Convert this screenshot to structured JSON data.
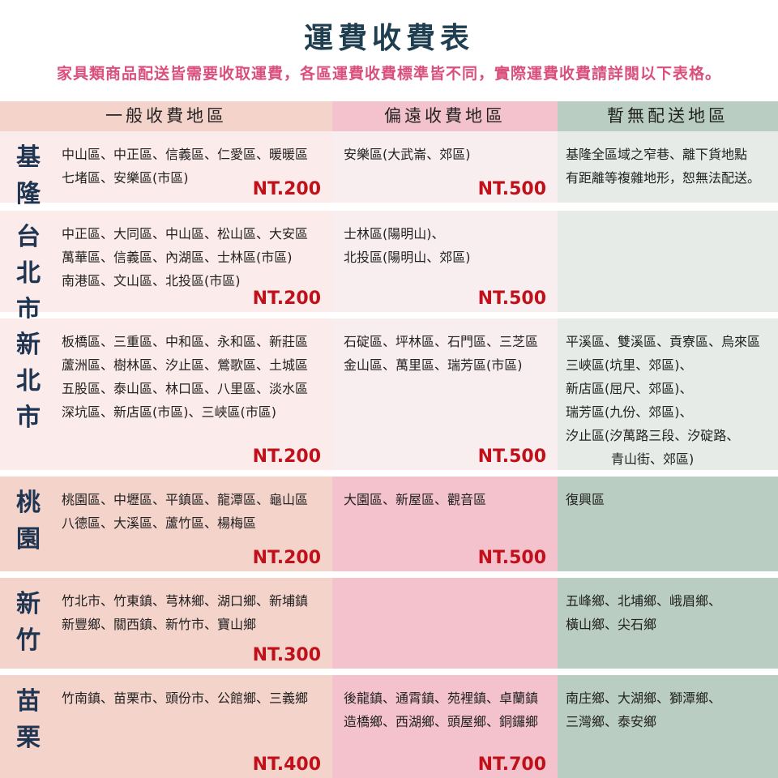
{
  "title": "運費收費表",
  "subtitle": "家具類商品配送皆需要收取運費，各區運費收費標準皆不同，實際運費收費請詳閱以下表格。",
  "colors": {
    "title": "#1f3e4f",
    "subtitle": "#d9507d",
    "price": "#c0101a",
    "general_header": "#f4d3cb",
    "remote_header": "#f4c2cd",
    "none_header": "#b9cdc2"
  },
  "headers": {
    "general": "一般收費地區",
    "remote": "偏遠收費地區",
    "none": "暫無配送地區"
  },
  "rows": [
    {
      "region": [
        "基",
        "隆"
      ],
      "general": [
        "中山區、中正區、信義區、仁愛區、暖暖區",
        "七堵區、安樂區(市區)"
      ],
      "general_price": "NT.200",
      "remote": [
        "安樂區(大武崙、郊區)"
      ],
      "remote_price": "NT.500",
      "none": [
        "基隆全區域之窄巷、離下貨地點",
        "有距離等複雜地形，恕無法配送。"
      ]
    },
    {
      "region": [
        "台",
        "北",
        "市"
      ],
      "general": [
        "中正區、大同區、中山區、松山區、大安區",
        "萬華區、信義區、內湖區、士林區(市區)",
        "南港區、文山區、北投區(市區)"
      ],
      "general_price": "NT.200",
      "remote": [
        "士林區(陽明山)、",
        "北投區(陽明山、郊區)"
      ],
      "remote_price": "NT.500",
      "none": []
    },
    {
      "region": [
        "新",
        "北",
        "市"
      ],
      "general": [
        "板橋區、三重區、中和區、永和區、新莊區",
        "蘆洲區、樹林區、汐止區、鶯歌區、土城區",
        "五股區、泰山區、林口區、八里區、淡水區",
        "深坑區、新店區(市區)、三峽區(市區)"
      ],
      "general_price": "NT.200",
      "remote": [
        "石碇區、坪林區、石門區、三芝區",
        "金山區、萬里區、瑞芳區(市區)"
      ],
      "remote_price": "NT.500",
      "none": [
        "平溪區、雙溪區、貢寮區、烏來區",
        "三峽區(坑里、郊區)、",
        "新店區(屈尺、郊區)、",
        "瑞芳區(九份、郊區)、",
        "汐止區(汐萬路三段、汐碇路、",
        "青山街、郊區)"
      ]
    },
    {
      "region": [
        "桃",
        "園"
      ],
      "general": [
        "桃園區、中壢區、平鎮區、龍潭區、龜山區",
        "八德區、大溪區、蘆竹區、楊梅區"
      ],
      "general_price": "NT.200",
      "remote": [
        "大園區、新屋區、觀音區"
      ],
      "remote_price": "NT.500",
      "none": [
        "復興區"
      ]
    },
    {
      "region": [
        "新",
        "竹"
      ],
      "general": [
        "竹北市、竹東鎮、芎林鄉、湖口鄉、新埔鎮",
        "新豐鄉、關西鎮、新竹市、寶山鄉"
      ],
      "general_price": "NT.300",
      "remote": [],
      "remote_price": "",
      "none": [
        "五峰鄉、北埔鄉、峨眉鄉、",
        "橫山鄉、尖石鄉"
      ]
    },
    {
      "region": [
        "苗",
        "栗"
      ],
      "general": [
        "竹南鎮、苗栗市、頭份市、公館鄉、三義鄉"
      ],
      "general_price": "NT.400",
      "remote": [
        "後龍鎮、通霄鎮、苑裡鎮、卓蘭鎮",
        "造橋鄉、西湖鄉、頭屋鄉、銅鑼鄉"
      ],
      "remote_price": "NT.700",
      "none": [
        "南庄鄉、大湖鄉、獅潭鄉、",
        "三灣鄉、泰安鄉"
      ]
    }
  ]
}
